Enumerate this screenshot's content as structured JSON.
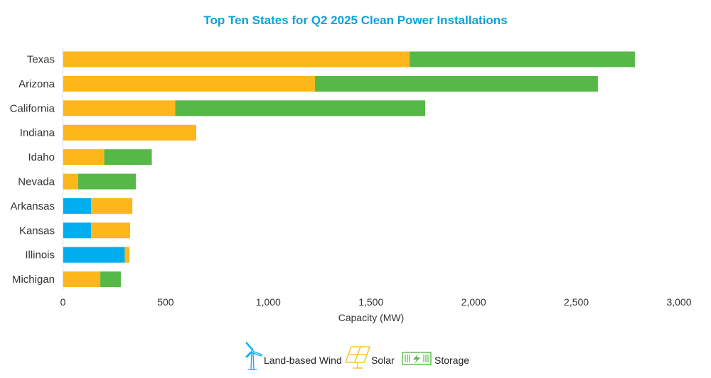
{
  "chart_data": {
    "type": "bar",
    "orientation": "horizontal",
    "stacked": true,
    "title": "Top Ten States for Q2 2025 Clean Power Installations",
    "xlabel": "Capacity (MW)",
    "ylabel": "",
    "xlim": [
      0,
      3000
    ],
    "xticks": [
      0,
      500,
      1000,
      1500,
      2000,
      2500,
      3000
    ],
    "xtick_labels": [
      "0",
      "500",
      "1,000",
      "1,500",
      "2,000",
      "2,500",
      "3,000"
    ],
    "grid": false,
    "legend_position": "bottom-center",
    "categories": [
      "Texas",
      "Arizona",
      "California",
      "Indiana",
      "Idaho",
      "Nevada",
      "Arkansas",
      "Kansas",
      "Illinois",
      "Michigan"
    ],
    "series": [
      {
        "name": "Land-based Wind",
        "icon": "wind-turbine-icon",
        "color": "#00aeef",
        "values": [
          0,
          0,
          0,
          0,
          0,
          0,
          137,
          137,
          301,
          0
        ]
      },
      {
        "name": "Solar",
        "icon": "solar-panel-icon",
        "color": "#fdb71a",
        "values": [
          1688,
          1227,
          547,
          649,
          201,
          74,
          201,
          190,
          23,
          182
        ]
      },
      {
        "name": "Storage",
        "icon": "battery-storage-icon",
        "color": "#56b947",
        "values": [
          1097,
          1378,
          1217,
          0,
          232,
          281,
          0,
          0,
          0,
          100
        ]
      }
    ]
  }
}
